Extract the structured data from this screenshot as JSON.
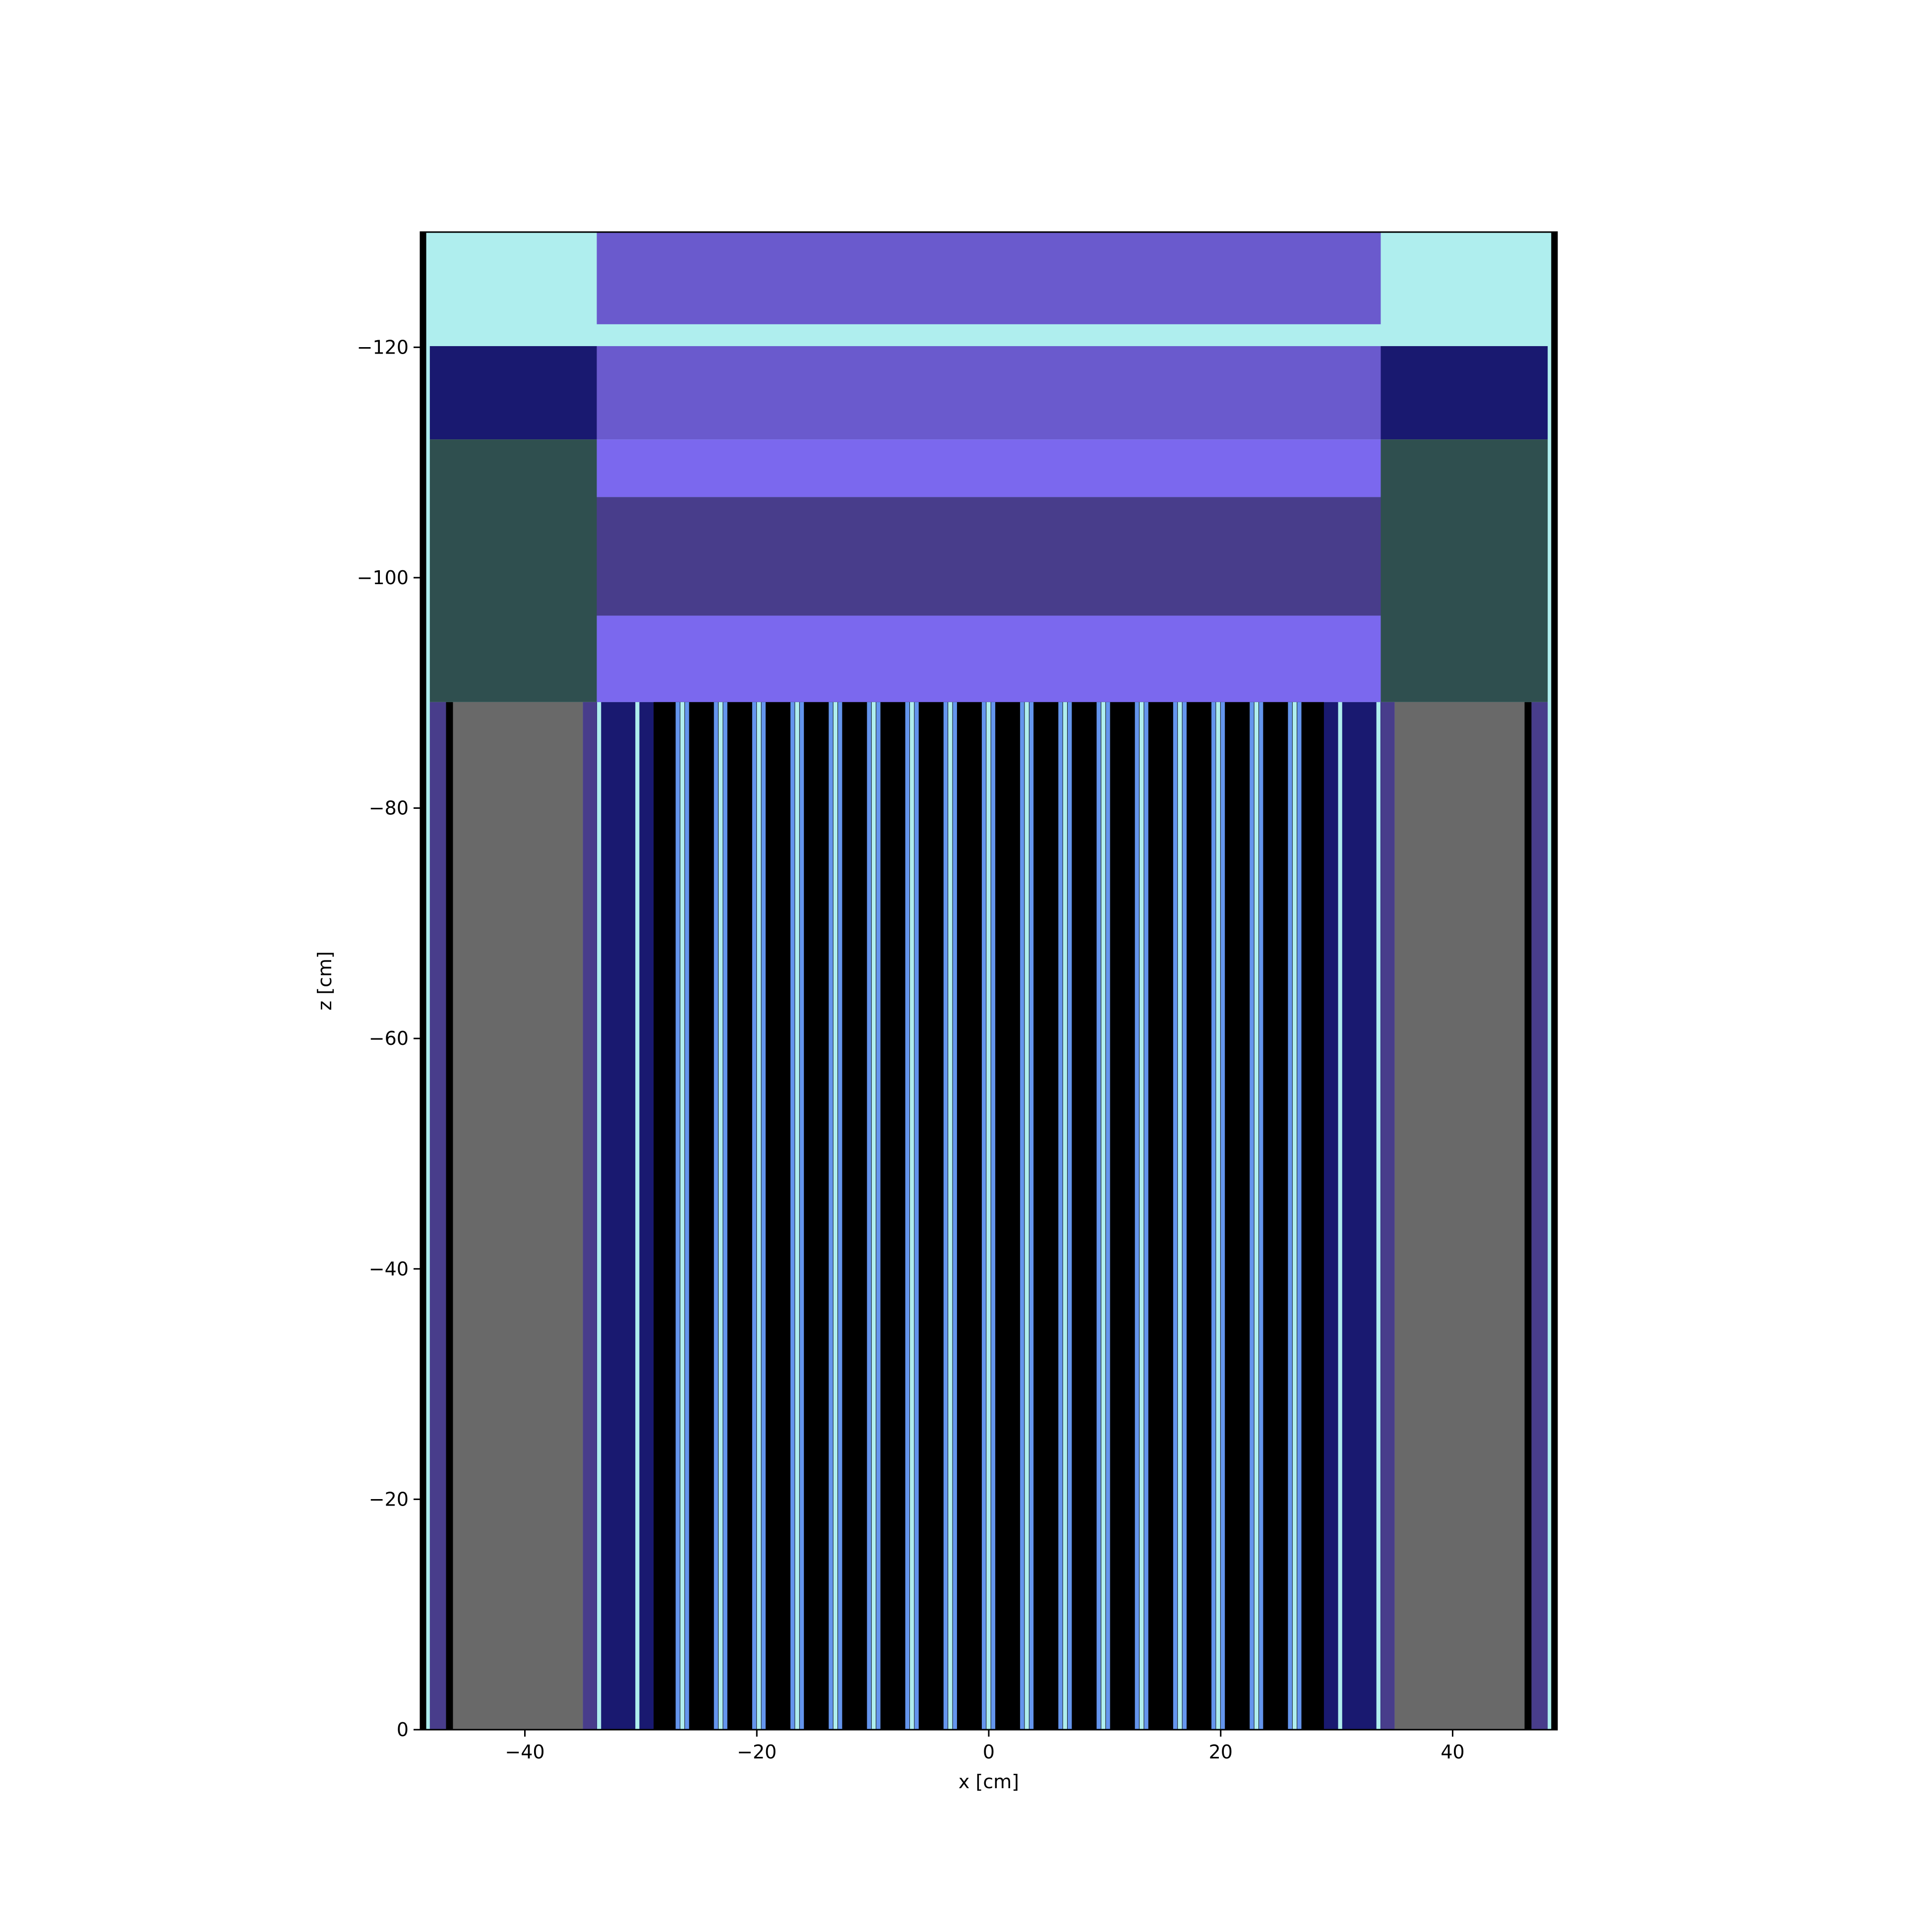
{
  "chart_data": {
    "type": "geometry-slice",
    "title": "",
    "xlabel": "x [cm]",
    "ylabel": "z [cm]",
    "xlim": [
      -49.0,
      49.0
    ],
    "ylim": [
      0,
      -130
    ],
    "y_inverted": true,
    "grid": false,
    "legend": "none",
    "xticks": [
      {
        "value": -40,
        "label": "−40"
      },
      {
        "value": -20,
        "label": "−20"
      },
      {
        "value": 0,
        "label": "0"
      },
      {
        "value": 20,
        "label": "20"
      },
      {
        "value": 40,
        "label": "40"
      }
    ],
    "yticks": [
      {
        "value": 0,
        "label": "0"
      },
      {
        "value": -20,
        "label": "−20"
      },
      {
        "value": -40,
        "label": "−40"
      },
      {
        "value": -60,
        "label": "−60"
      },
      {
        "value": -80,
        "label": "−80"
      },
      {
        "value": -100,
        "label": "−100"
      },
      {
        "value": -120,
        "label": "−120"
      }
    ],
    "colors": {
      "light_cyan": "#afeeee",
      "navy": "#191970",
      "slate_dark": "#2f4f4f",
      "slate_blue": "#6a5acd",
      "medium_slate": "#7b68ee",
      "dark_slate_blue": "#483d8b",
      "gray": "#696969",
      "black": "#000000",
      "cyan_pin": "#afeeee",
      "blue_pin": "#6495ed"
    },
    "regions": [
      {
        "color": "#afeeee",
        "x0": -48.5,
        "x1": 48.5,
        "z0": -120.1,
        "z1": -130
      },
      {
        "color": "#6a5acd",
        "x0": -33.8,
        "x1": 33.8,
        "z0": -122.0,
        "z1": -130
      },
      {
        "color": "#191970",
        "x0": -48.2,
        "x1": -33.8,
        "z0": -112.0,
        "z1": -120.1
      },
      {
        "color": "#191970",
        "x0": 33.8,
        "x1": 48.2,
        "z0": -112.0,
        "z1": -120.1
      },
      {
        "color": "#6a5acd",
        "x0": -33.8,
        "x1": 33.8,
        "z0": -112.0,
        "z1": -120.1
      },
      {
        "color": "#2f4f4f",
        "x0": -48.2,
        "x1": -33.8,
        "z0": -89.2,
        "z1": -112.0
      },
      {
        "color": "#2f4f4f",
        "x0": 33.8,
        "x1": 48.2,
        "z0": -89.2,
        "z1": -112.0
      },
      {
        "color": "#7b68ee",
        "x0": -33.8,
        "x1": 33.8,
        "z0": -107.0,
        "z1": -112.0
      },
      {
        "color": "#483d8b",
        "x0": -33.8,
        "x1": 33.8,
        "z0": -96.7,
        "z1": -107.0
      },
      {
        "color": "#7b68ee",
        "x0": -33.8,
        "x1": 33.8,
        "z0": -89.2,
        "z1": -96.7
      },
      {
        "color": "#483d8b",
        "x0": -48.2,
        "x1": -46.8,
        "z0": 0,
        "z1": -89.2
      },
      {
        "color": "#000000",
        "x0": -46.8,
        "x1": -46.2,
        "z0": 0,
        "z1": -89.2
      },
      {
        "color": "#696969",
        "x0": -46.2,
        "x1": -35.0,
        "z0": 0,
        "z1": -89.2
      },
      {
        "color": "#483d8b",
        "x0": -35.0,
        "x1": -33.8,
        "z0": 0,
        "z1": -89.2
      },
      {
        "color": "#483d8b",
        "x0": 33.8,
        "x1": 35.0,
        "z0": 0,
        "z1": -89.2
      },
      {
        "color": "#696969",
        "x0": 35.0,
        "x1": 46.2,
        "z0": 0,
        "z1": -89.2
      },
      {
        "color": "#000000",
        "x0": 46.2,
        "x1": 46.8,
        "z0": 0,
        "z1": -89.2
      },
      {
        "color": "#483d8b",
        "x0": 46.8,
        "x1": 48.2,
        "z0": 0,
        "z1": -89.2
      },
      {
        "color": "#191970",
        "x0": -33.8,
        "x1": 33.8,
        "z0": 0,
        "z1": -89.2
      },
      {
        "color": "#000000",
        "x0": -28.9,
        "x1": 28.9,
        "z0": 0,
        "z1": -89.2
      }
    ],
    "boundary_strips": {
      "left_outer": {
        "x0": -49.0,
        "x1": -48.5,
        "color": "#000000"
      },
      "left_cyan": {
        "x0": -48.5,
        "x1": -48.2,
        "color": "#afeeee"
      },
      "right_cyan": {
        "x0": 48.2,
        "x1": 48.5,
        "color": "#afeeee"
      },
      "right_outer": {
        "x0": 48.5,
        "x1": 49.0,
        "color": "#000000"
      }
    },
    "lattice": {
      "z0": 0,
      "z1": -89.2,
      "pitch_cm": 3.3,
      "rod_centers_start": -26.4,
      "rod_count": 17,
      "rod_width_cm": 1.2,
      "rod_colors": [
        "#6495ed",
        "#afeeee",
        "#6495ed"
      ],
      "edge_rods": [
        {
          "center": -33.6,
          "width": 0.35,
          "color": "#afeeee"
        },
        {
          "center": -30.3,
          "width": 0.35,
          "color": "#afeeee"
        },
        {
          "center": 30.3,
          "width": 0.35,
          "color": "#afeeee"
        },
        {
          "center": 33.6,
          "width": 0.35,
          "color": "#afeeee"
        }
      ]
    }
  }
}
